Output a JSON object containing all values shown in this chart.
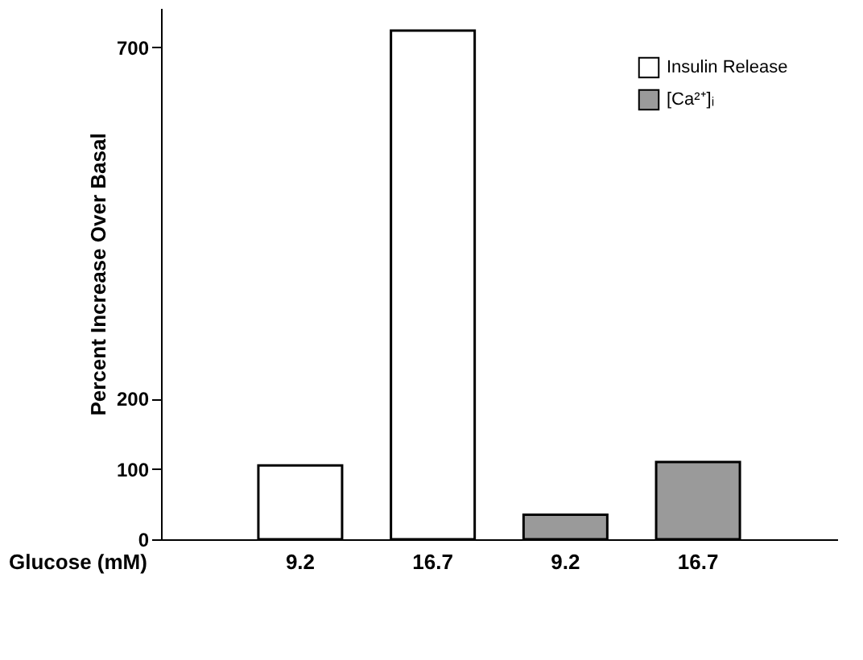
{
  "chart_data": {
    "type": "bar",
    "categories": [
      "9.2",
      "16.7",
      "9.2",
      "16.7"
    ],
    "series": [
      {
        "name": "Insulin Release",
        "color": "#ffffff",
        "values": [
          105,
          724,
          null,
          null
        ]
      },
      {
        "name": "[Ca²⁺]ᵢ",
        "color": "#9a9a9a",
        "values": [
          null,
          null,
          35,
          110
        ]
      }
    ],
    "ylim": [
      0,
      756
    ],
    "yticks": [
      0,
      100,
      200,
      700
    ],
    "xlabel": "Glucose (mM)",
    "ylabel": "Percent Increase Over Basal",
    "legend": "top right",
    "grid": false
  }
}
